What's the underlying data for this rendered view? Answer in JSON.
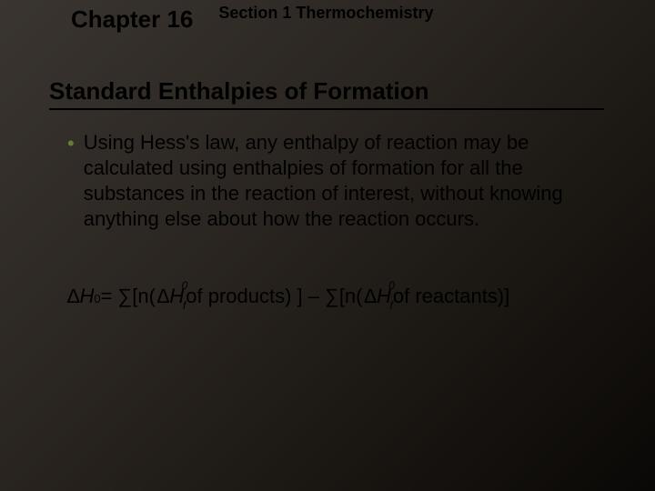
{
  "header": {
    "chapter": "Chapter 16",
    "section": "Section 1  Thermochemistry"
  },
  "title": "Standard Enthalpies of Formation",
  "bullet": {
    "marker": "•",
    "text": "Using Hess's law, any enthalpy of reaction may be calculated using enthalpies of formation for all the substances in the reaction of interest, without knowing anything else about how the reaction occurs."
  },
  "formula": {
    "delta": "∆",
    "H": "H",
    "sup0": "0",
    "eq": " = ∑[n( ",
    "dhf_delta": "∆",
    "dhf_H": "H",
    "dhf_0": "0",
    "dhf_f": "f",
    "of_products": " of products) ] – ∑[n( ",
    "of_reactants": "of reactants)]"
  },
  "colors": {
    "text": "#000000",
    "bullet_marker": "#6b7a3a",
    "bg_start": "#3a3530",
    "bg_end": "#0a0806"
  }
}
